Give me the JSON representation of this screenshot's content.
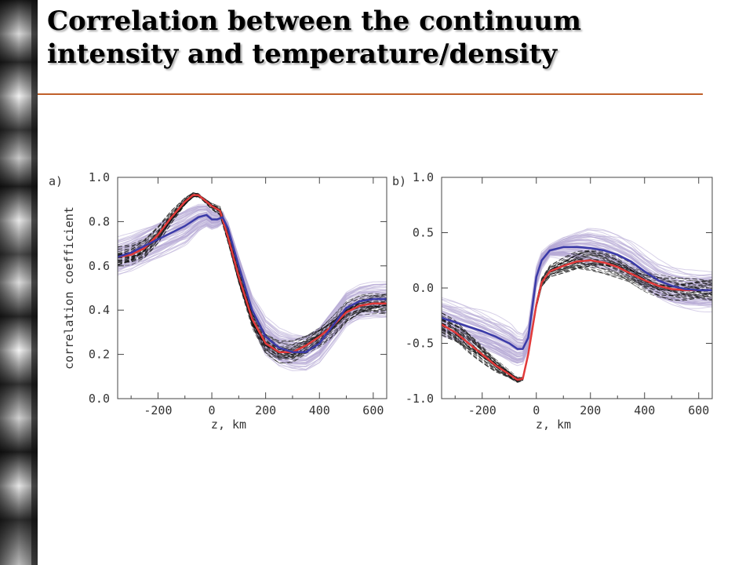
{
  "slide": {
    "title_line1": "Correlation between the continuum",
    "title_line2": "intensity and temperature/density",
    "rule_color": "#c0602a"
  },
  "colors": {
    "red": "#e23a3a",
    "blue": "#3a3aa8",
    "lavender": "#b7a9d6",
    "black_bundle": "#111111",
    "axis": "#444444"
  },
  "chart_data": [
    {
      "type": "line",
      "panel_label": "a)",
      "xlabel": "z, km",
      "ylabel": "correlation coefficient",
      "xlim": [
        -350,
        650
      ],
      "ylim": [
        0.0,
        1.0
      ],
      "xticks": [
        -200,
        0,
        200,
        400,
        600
      ],
      "xtick_labels": [
        "-200",
        "0",
        "200",
        "400",
        "600"
      ],
      "yticks": [
        0.0,
        0.2,
        0.4,
        0.6,
        0.8,
        1.0
      ],
      "ytick_labels": [
        "0.0",
        "0.2",
        "0.4",
        "0.6",
        "0.8",
        "1.0"
      ],
      "series": [
        {
          "role": "red-line",
          "color": "#e23a3a",
          "x": [
            -350,
            -300,
            -250,
            -200,
            -150,
            -100,
            -70,
            -50,
            -20,
            0,
            30,
            60,
            100,
            150,
            200,
            250,
            300,
            350,
            400,
            450,
            500,
            550,
            600,
            650
          ],
          "y": [
            0.64,
            0.65,
            0.68,
            0.74,
            0.82,
            0.89,
            0.92,
            0.92,
            0.89,
            0.87,
            0.85,
            0.73,
            0.55,
            0.36,
            0.25,
            0.21,
            0.21,
            0.24,
            0.28,
            0.33,
            0.39,
            0.42,
            0.43,
            0.43
          ]
        },
        {
          "role": "blue-line",
          "color": "#3a3aa8",
          "x": [
            -350,
            -300,
            -250,
            -200,
            -150,
            -100,
            -50,
            -20,
            0,
            20,
            40,
            60,
            100,
            150,
            200,
            250,
            300,
            350,
            400,
            450,
            500,
            550,
            600,
            650
          ],
          "y": [
            0.64,
            0.66,
            0.69,
            0.72,
            0.75,
            0.78,
            0.82,
            0.83,
            0.81,
            0.81,
            0.82,
            0.77,
            0.6,
            0.4,
            0.28,
            0.23,
            0.21,
            0.21,
            0.25,
            0.33,
            0.41,
            0.44,
            0.45,
            0.45
          ]
        }
      ]
    },
    {
      "type": "line",
      "panel_label": "b)",
      "xlabel": "z, km",
      "ylabel": "",
      "xlim": [
        -350,
        650
      ],
      "ylim": [
        -1.0,
        1.0
      ],
      "xticks": [
        -200,
        0,
        200,
        400,
        600
      ],
      "xtick_labels": [
        "-200",
        "0",
        "200",
        "400",
        "600"
      ],
      "yticks": [
        -1.0,
        -0.5,
        0.0,
        0.5,
        1.0
      ],
      "ytick_labels": [
        "-1.0",
        "-0.5",
        "0.0",
        "0.5",
        "1.0"
      ],
      "series": [
        {
          "role": "red-line",
          "color": "#e23a3a",
          "x": [
            -350,
            -300,
            -250,
            -200,
            -150,
            -100,
            -70,
            -50,
            -30,
            0,
            20,
            50,
            100,
            150,
            200,
            250,
            300,
            350,
            400,
            450,
            500,
            550,
            600,
            650
          ],
          "y": [
            -0.33,
            -0.4,
            -0.5,
            -0.6,
            -0.7,
            -0.78,
            -0.83,
            -0.82,
            -0.6,
            -0.15,
            0.05,
            0.15,
            0.2,
            0.24,
            0.25,
            0.23,
            0.19,
            0.13,
            0.07,
            0.02,
            -0.01,
            -0.02,
            -0.02,
            -0.02
          ]
        },
        {
          "role": "blue-line",
          "color": "#3a3aa8",
          "x": [
            -350,
            -300,
            -250,
            -200,
            -150,
            -100,
            -70,
            -50,
            -30,
            0,
            20,
            50,
            100,
            150,
            200,
            250,
            300,
            350,
            400,
            450,
            500,
            550,
            600,
            650
          ],
          "y": [
            -0.27,
            -0.31,
            -0.35,
            -0.39,
            -0.44,
            -0.5,
            -0.55,
            -0.55,
            -0.45,
            0.1,
            0.25,
            0.34,
            0.37,
            0.37,
            0.36,
            0.34,
            0.3,
            0.24,
            0.15,
            0.07,
            0.02,
            -0.01,
            -0.02,
            -0.02
          ]
        }
      ]
    }
  ]
}
